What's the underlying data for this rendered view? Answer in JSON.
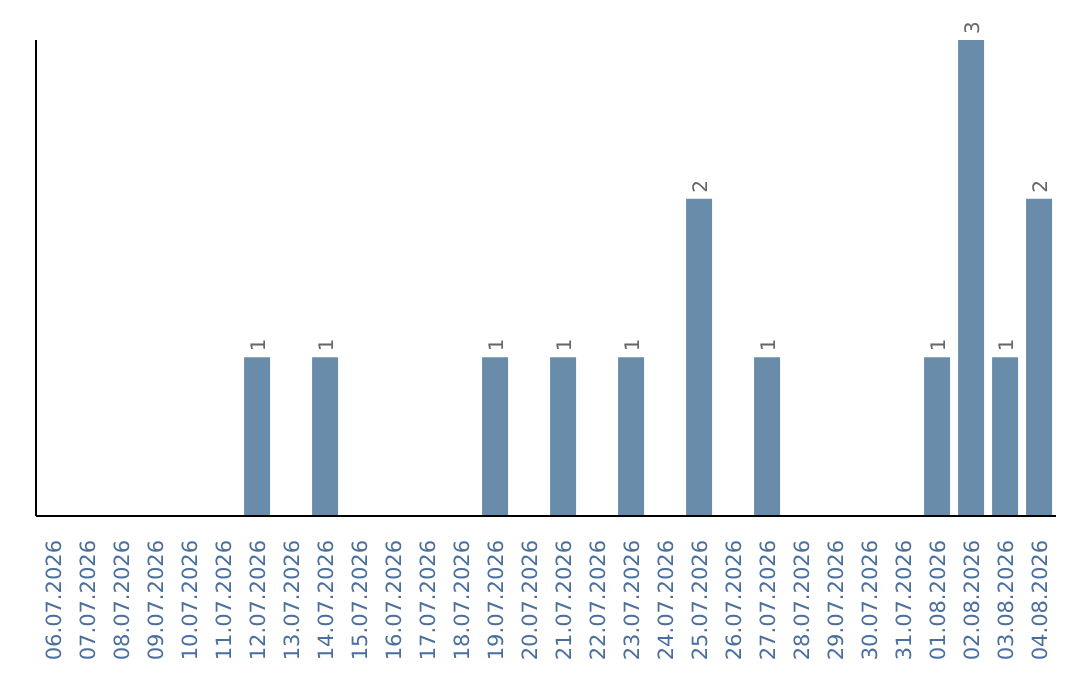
{
  "chart_data": {
    "type": "bar",
    "categories": [
      "06.07.2026",
      "07.07.2026",
      "08.07.2026",
      "09.07.2026",
      "10.07.2026",
      "11.07.2026",
      "12.07.2026",
      "13.07.2026",
      "14.07.2026",
      "15.07.2026",
      "16.07.2026",
      "17.07.2026",
      "18.07.2026",
      "19.07.2026",
      "20.07.2026",
      "21.07.2026",
      "22.07.2026",
      "23.07.2026",
      "24.07.2026",
      "25.07.2026",
      "26.07.2026",
      "27.07.2026",
      "28.07.2026",
      "29.07.2026",
      "30.07.2026",
      "31.07.2026",
      "01.08.2026",
      "02.08.2026",
      "03.08.2026",
      "04.08.2026"
    ],
    "values": [
      0,
      0,
      0,
      0,
      0,
      0,
      1,
      0,
      1,
      0,
      0,
      0,
      0,
      1,
      0,
      1,
      0,
      1,
      0,
      2,
      0,
      1,
      0,
      0,
      0,
      0,
      1,
      3,
      1,
      2
    ],
    "value_labels": [
      null,
      null,
      null,
      null,
      null,
      null,
      "1",
      null,
      "1",
      null,
      null,
      null,
      null,
      "1",
      null,
      "1",
      null,
      "1",
      null,
      "2",
      null,
      "1",
      null,
      null,
      null,
      null,
      "1",
      "3",
      "1",
      "2"
    ],
    "color": "#6a8cab",
    "tick_labels": "x"
  }
}
